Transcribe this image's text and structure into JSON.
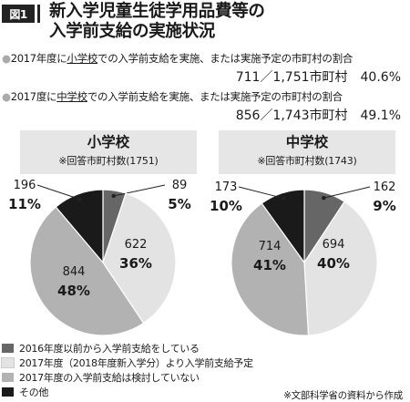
{
  "header": {
    "figure_label": "図1",
    "title_line1": "新入学児童生徒学用品費等の",
    "title_line2": "入学前支給の実施状況"
  },
  "stats": [
    {
      "bullet": "●",
      "prefix": "2017年度に",
      "school": "小学校",
      "suffix": "での入学前支給を実施、または実施予定の市町村の割合",
      "value": "711／1,751市町村",
      "percent": "40.6%"
    },
    {
      "bullet": "●",
      "prefix": "2017度に",
      "school": "中学校",
      "suffix": "での入学前支給を実施、または実施予定の市町村の割合",
      "value": "856／1,743市町村",
      "percent": "49.1%"
    }
  ],
  "colors": {
    "before2016": "#666666",
    "planned2017": "#e3e3e3",
    "not_considered": "#b2b2b2",
    "other": "#1a1a1a"
  },
  "chart_data": [
    {
      "type": "pie",
      "title": "小学校",
      "subtitle": "※回答市町村数(1751)",
      "total": 1751,
      "slices": [
        {
          "label": "2016年度以前から入学前支給をしている",
          "value": 89,
          "percent": "5%"
        },
        {
          "label": "2017年度(2018年度新入学分)より入学前支給予定",
          "value": 622,
          "percent": "36%"
        },
        {
          "label": "2017年度の入学前支給は検討していない",
          "value": 844,
          "percent": "48%"
        },
        {
          "label": "その他",
          "value": 196,
          "percent": "11%"
        }
      ]
    },
    {
      "type": "pie",
      "title": "中学校",
      "subtitle": "※回答市町村数(1743)",
      "total": 1743,
      "slices": [
        {
          "label": "2016年度以前から入学前支給をしている",
          "value": 162,
          "percent": "9%"
        },
        {
          "label": "2017年度(2018年度新入学分)より入学前支給予定",
          "value": 694,
          "percent": "40%"
        },
        {
          "label": "2017年度の入学前支給は検討していない",
          "value": 714,
          "percent": "41%"
        },
        {
          "label": "その他",
          "value": 173,
          "percent": "10%"
        }
      ]
    }
  ],
  "legend": [
    {
      "label": "2016年度以前から入学前支給をしている",
      "color_key": "before2016"
    },
    {
      "label": "2017年度（2018年度新入学分）より入学前支給予定",
      "color_key": "planned2017"
    },
    {
      "label": "2017年度の入学前支給は検討していない",
      "color_key": "not_considered"
    },
    {
      "label": "その他",
      "color_key": "other"
    }
  ],
  "source": "※文部科学省の資料から作成"
}
